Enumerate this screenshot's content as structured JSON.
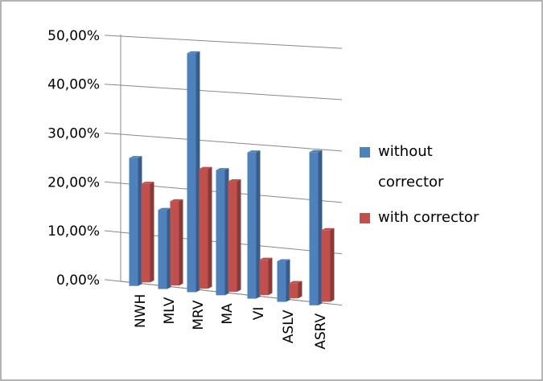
{
  "chart_data": {
    "type": "bar3d",
    "categories": [
      "NWH",
      "MLV",
      "MRV",
      "MA",
      "VI",
      "ASLV",
      "ASRV"
    ],
    "series": [
      {
        "name": "without corrector",
        "color": "#4f81bd",
        "values": [
          26,
          16,
          48,
          25,
          29,
          8,
          30
        ]
      },
      {
        "name": "with corrector",
        "color": "#c0504d",
        "values": [
          20,
          17,
          24,
          22,
          7,
          3,
          14
        ]
      }
    ],
    "ylim": [
      0,
      50
    ],
    "yticks": [
      {
        "value": 0,
        "label": "0,00%"
      },
      {
        "value": 10,
        "label": "10,00%"
      },
      {
        "value": 20,
        "label": "20,00%"
      },
      {
        "value": 30,
        "label": "30,00%"
      },
      {
        "value": 40,
        "label": "40,00%"
      },
      {
        "value": 50,
        "label": "50,00%"
      }
    ],
    "grid": true,
    "legend": "right"
  }
}
